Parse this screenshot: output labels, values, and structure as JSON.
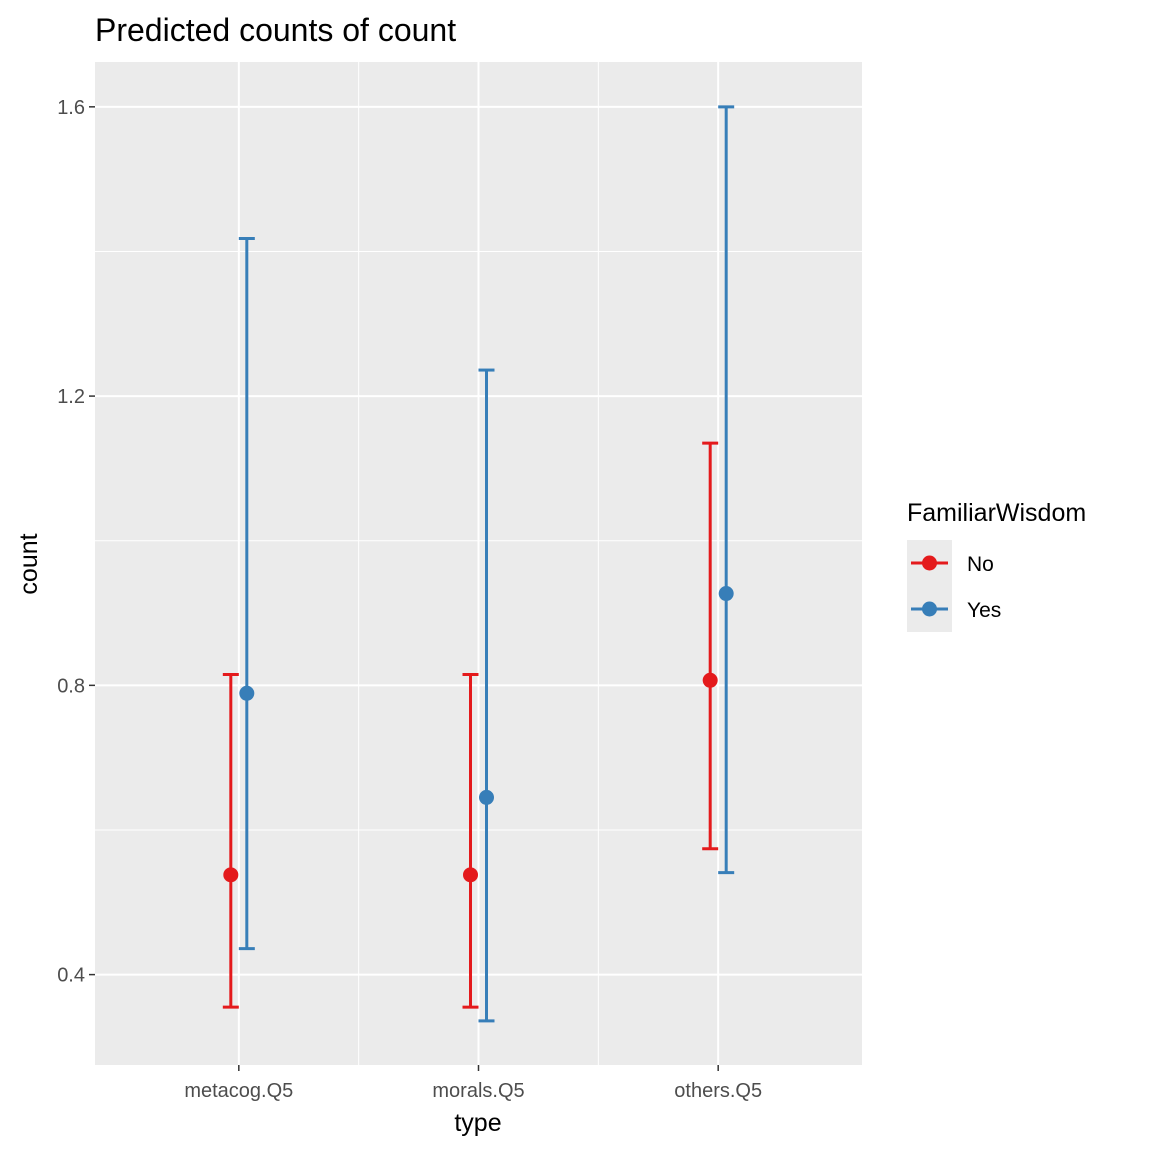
{
  "chart_data": {
    "type": "scatter",
    "title": "Predicted counts of count",
    "xlabel": "type",
    "ylabel": "count",
    "categories": [
      "metacog.Q5",
      "morals.Q5",
      "others.Q5"
    ],
    "ylim": [
      0.275,
      1.662
    ],
    "yticks": [
      0.4,
      0.8,
      1.2,
      1.6
    ],
    "yticks_labels": [
      "0.4",
      "0.8",
      "1.2",
      "1.6"
    ],
    "grid": true,
    "legend": {
      "title": "FamiliarWisdom",
      "position": "right"
    },
    "series": [
      {
        "name": "No",
        "color": "#E41A1C",
        "values": [
          0.538,
          0.538,
          0.807
        ],
        "lower": [
          0.355,
          0.355,
          0.574
        ],
        "upper": [
          0.815,
          0.815,
          1.135
        ]
      },
      {
        "name": "Yes",
        "color": "#377EB8",
        "values": [
          0.789,
          0.645,
          0.927
        ],
        "lower": [
          0.436,
          0.336,
          0.541
        ],
        "upper": [
          1.418,
          1.236,
          1.6
        ]
      }
    ]
  }
}
